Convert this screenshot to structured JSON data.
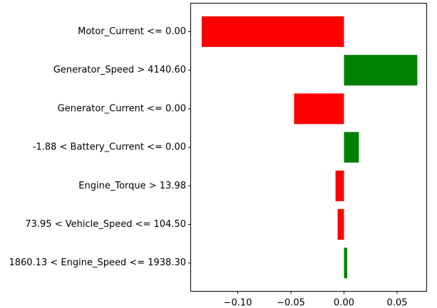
{
  "chart_data": {
    "type": "bar",
    "orientation": "horizontal",
    "categories": [
      "Motor_Current <= 0.00",
      "Generator_Speed > 4140.60",
      "Generator_Current <= 0.00",
      "-1.88 < Battery_Current <= 0.00",
      "Engine_Torque > 13.98",
      "73.95 < Vehicle_Speed <= 104.50",
      "1860.13 < Engine_Speed <= 1938.30"
    ],
    "values": [
      -0.134,
      0.069,
      -0.047,
      0.014,
      -0.008,
      -0.006,
      0.003
    ],
    "xlim": [
      -0.144,
      0.0775
    ],
    "xticks": [
      -0.1,
      -0.05,
      0.0,
      0.05
    ],
    "xtick_labels": [
      "−0.10",
      "−0.05",
      "0.00",
      "0.05"
    ],
    "positive_color": "#008000",
    "negative_color": "#ff0000",
    "title": "",
    "xlabel": "",
    "ylabel": "",
    "grid": false,
    "legend": "none"
  }
}
